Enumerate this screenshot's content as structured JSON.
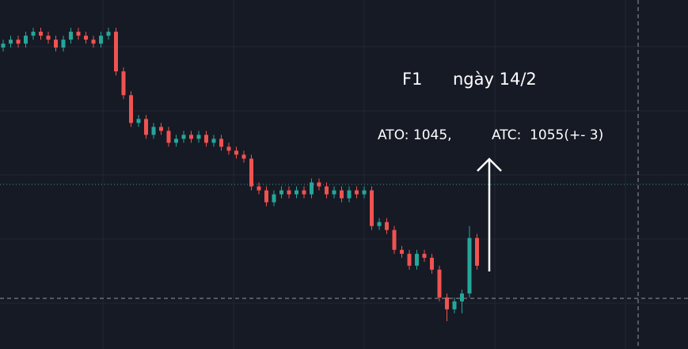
{
  "chart_data": {
    "type": "candlestick",
    "annotations": [
      "F1",
      "ngày 14/2",
      "ATO: 1045,",
      "ATC:  1055(+- 3)"
    ],
    "up_color": "#26a69a",
    "down_color": "#ef5350",
    "ylim": [
      1012,
      1100
    ],
    "open": [
      1088,
      1089,
      1090,
      1089,
      1091,
      1092,
      1091,
      1090,
      1088,
      1090,
      1092,
      1091,
      1090,
      1089,
      1091,
      1092,
      1082,
      1076,
      1069,
      1070,
      1066,
      1068,
      1067,
      1064,
      1065,
      1066,
      1065,
      1066,
      1064,
      1065,
      1063,
      1062,
      1061,
      1060,
      1053,
      1052,
      1049,
      1051,
      1052,
      1051,
      1052,
      1051,
      1054,
      1053,
      1051,
      1052,
      1050,
      1052,
      1051,
      1052,
      1043,
      1044,
      1042,
      1037,
      1036,
      1033,
      1036,
      1035,
      1032,
      1025,
      1022,
      1024,
      1026,
      1040
    ],
    "high": [
      1090,
      1091,
      1091,
      1092,
      1093,
      1093,
      1092,
      1091,
      1091,
      1093,
      1093,
      1092,
      1091,
      1092,
      1093,
      1093,
      1083,
      1077,
      1071,
      1071,
      1069,
      1069,
      1068,
      1066,
      1067,
      1067,
      1067,
      1067,
      1066,
      1066,
      1064,
      1063,
      1062,
      1061,
      1054,
      1053,
      1052,
      1053,
      1053,
      1053,
      1053,
      1055,
      1055,
      1054,
      1053,
      1053,
      1053,
      1053,
      1053,
      1053,
      1045,
      1045,
      1043,
      1038,
      1037,
      1037,
      1037,
      1036,
      1033,
      1026,
      1025,
      1027,
      1043,
      1041
    ],
    "low": [
      1087,
      1088,
      1088,
      1088,
      1090,
      1090,
      1089,
      1087,
      1087,
      1089,
      1090,
      1089,
      1088,
      1088,
      1090,
      1081,
      1075,
      1068,
      1068,
      1065,
      1065,
      1066,
      1063,
      1063,
      1064,
      1064,
      1064,
      1063,
      1063,
      1062,
      1061,
      1060,
      1059,
      1052,
      1051,
      1048,
      1048,
      1050,
      1050,
      1050,
      1050,
      1050,
      1052,
      1050,
      1050,
      1049,
      1049,
      1050,
      1050,
      1042,
      1042,
      1041,
      1036,
      1035,
      1032,
      1032,
      1034,
      1031,
      1024,
      1019,
      1021,
      1021,
      1025,
      1032
    ],
    "close": [
      1089,
      1090,
      1089,
      1091,
      1092,
      1091,
      1090,
      1088,
      1090,
      1092,
      1091,
      1090,
      1089,
      1091,
      1092,
      1082,
      1076,
      1069,
      1070,
      1066,
      1068,
      1067,
      1064,
      1065,
      1066,
      1065,
      1066,
      1064,
      1065,
      1063,
      1062,
      1061,
      1060,
      1053,
      1052,
      1049,
      1051,
      1052,
      1051,
      1052,
      1051,
      1054,
      1053,
      1051,
      1052,
      1050,
      1052,
      1051,
      1052,
      1043,
      1044,
      1042,
      1037,
      1036,
      1033,
      1036,
      1035,
      1032,
      1025,
      1022,
      1024,
      1026,
      1040,
      1033
    ]
  }
}
